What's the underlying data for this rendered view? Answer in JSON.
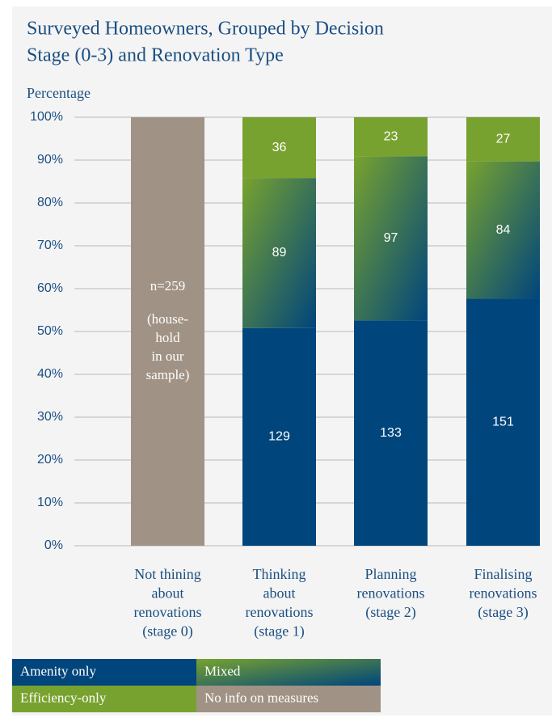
{
  "chart_data": {
    "type": "stacked_bar",
    "stacking": "percent",
    "title": [
      "Surveyed Homeowners, Grouped by Decision",
      "Stage (0-3) and Renovation Type"
    ],
    "y_label": "Percentage",
    "categories": [
      [
        "Not thining",
        "about",
        "renovations",
        "(stage 0)"
      ],
      [
        "Thinking",
        "about",
        "renovations",
        "(stage 1)"
      ],
      [
        "Planning",
        "renovations",
        "(stage 2)"
      ],
      [
        "Finalising",
        "renovations",
        "(stage 3)"
      ]
    ],
    "series": [
      {
        "name": "Amenity only",
        "color": "#00457c",
        "values": [
          null,
          129,
          133,
          151
        ]
      },
      {
        "name": "Mixed",
        "color": [
          "#78a22f",
          "#00457c"
        ],
        "values": [
          null,
          89,
          97,
          84
        ]
      },
      {
        "name": "Efficiency-only",
        "color": "#78a22f",
        "values": [
          null,
          36,
          23,
          27
        ]
      },
      {
        "name": "No info on measures",
        "color": "#a09385",
        "values": [
          259,
          null,
          null,
          null
        ],
        "value_labels": [
          "n=259",
          null,
          null,
          null
        ]
      }
    ],
    "annotations": [
      {
        "category": 0,
        "lines": [
          "(house-",
          "hold",
          "in our",
          "sample)"
        ]
      }
    ],
    "ylim": [
      0,
      100
    ],
    "yticks": [
      {
        "value": 0,
        "label": "0%"
      },
      {
        "value": 10,
        "label": "10%"
      },
      {
        "value": 20,
        "label": "20%"
      },
      {
        "value": 30,
        "label": "30%"
      },
      {
        "value": 40,
        "label": "40%"
      },
      {
        "value": 50,
        "label": "50%"
      },
      {
        "value": 60,
        "label": "60%"
      },
      {
        "value": 70,
        "label": "70%"
      },
      {
        "value": 80,
        "label": "80%"
      },
      {
        "value": 90,
        "label": "90%"
      },
      {
        "value": 100,
        "label": "100%"
      }
    ],
    "grid": true
  }
}
